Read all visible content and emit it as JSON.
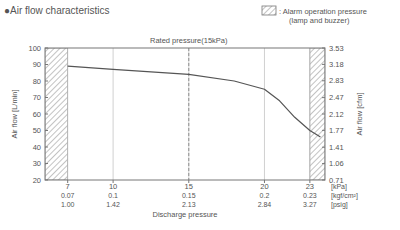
{
  "chart_data": {
    "type": "line",
    "title": "●Air flow characteristics",
    "x_label": "Discharge pressure",
    "y_label": "Air flow [L/min]",
    "y2_label": "Air flow [cfm]",
    "x_units": "[kPa]",
    "x": [
      7,
      10,
      15,
      18,
      20,
      21,
      22,
      23,
      23.7
    ],
    "values": [
      89,
      87,
      84,
      80,
      75,
      68,
      58,
      50,
      46
    ],
    "color": "#555555",
    "xlim": [
      5.5,
      24
    ],
    "xticks": [
      7,
      10,
      15,
      20,
      23
    ],
    "ylim": [
      20,
      100
    ],
    "yticks": [
      20,
      30,
      40,
      50,
      60,
      70,
      80,
      90,
      100
    ],
    "y2lim": [
      0.71,
      3.53
    ],
    "y2ticks": [
      0.71,
      1.06,
      1.41,
      1.77,
      2.12,
      2.47,
      2.83,
      3.18,
      3.53
    ],
    "x_secondary": {
      "units": "[kgf/cm²]",
      "labels": [
        "0.07",
        "0.1",
        "0.15",
        "0.2",
        "0.23"
      ]
    },
    "x_tertiary": {
      "units": "[psig]",
      "labels": [
        "1.00",
        "1.42",
        "2.13",
        "2.84",
        "3.27"
      ]
    },
    "rated_pressure": {
      "value": 15,
      "label": "Rated pressure(15kPa)"
    },
    "alarm": {
      "label": ": Alarm operation pressure",
      "sublabel": "(lamp and buzzer)",
      "ranges": [
        [
          5.5,
          7
        ],
        [
          23,
          24
        ]
      ]
    },
    "grid": "x"
  }
}
